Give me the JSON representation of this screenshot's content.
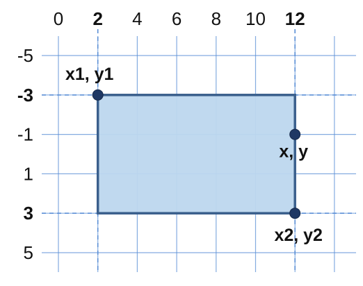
{
  "diagram": {
    "x_ticks": [
      {
        "label": "0",
        "value": 0,
        "bold": false
      },
      {
        "label": "2",
        "value": 2,
        "bold": true
      },
      {
        "label": "4",
        "value": 4,
        "bold": false
      },
      {
        "label": "6",
        "value": 6,
        "bold": false
      },
      {
        "label": "8",
        "value": 8,
        "bold": false
      },
      {
        "label": "10",
        "value": 10,
        "bold": false
      },
      {
        "label": "12",
        "value": 12,
        "bold": true
      }
    ],
    "y_ticks": [
      {
        "label": "-5",
        "value": -5,
        "bold": false
      },
      {
        "label": "-3",
        "value": -3,
        "bold": true
      },
      {
        "label": "-1",
        "value": -1,
        "bold": false
      },
      {
        "label": "1",
        "value": 1,
        "bold": false
      },
      {
        "label": "3",
        "value": 3,
        "bold": true
      },
      {
        "label": "5",
        "value": 5,
        "bold": false
      }
    ],
    "rectangle": {
      "x1": 2,
      "y1": -3,
      "x2": 12,
      "y2": 3
    },
    "points": [
      {
        "label": "x1, y1",
        "x": 2,
        "y": -3
      },
      {
        "label": "x, y",
        "x": 12,
        "y": -1
      },
      {
        "label": "x2, y2",
        "x": 12,
        "y": 3
      }
    ],
    "colors": {
      "grid": "#5b8fd6",
      "guide": "#5b8fd6",
      "rect_fill": "#bdd7ee",
      "rect_stroke": "#3a5f8c",
      "point": "#1f3864"
    }
  }
}
